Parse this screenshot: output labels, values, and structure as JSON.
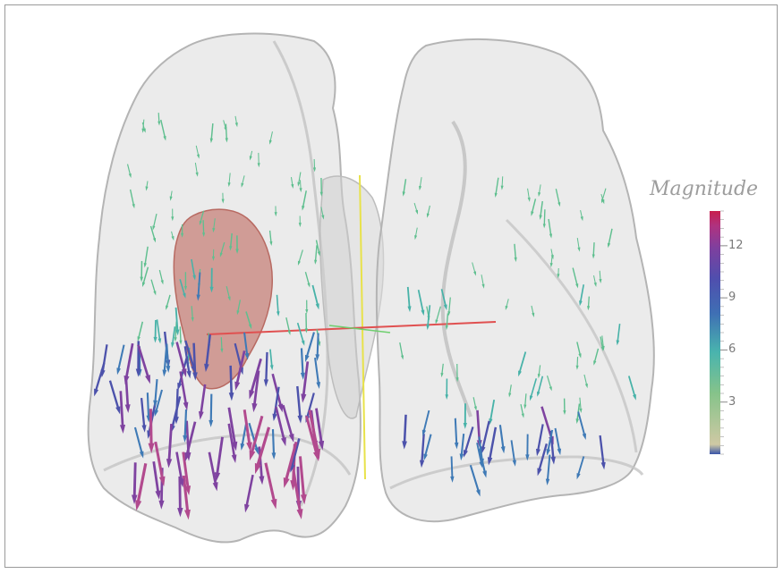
{
  "legend": {
    "title": "Magnitude",
    "min": 0,
    "max": 14,
    "ticks": [
      3,
      6,
      9,
      12
    ],
    "colors": [
      "#3a55a8",
      "#cfc9a4",
      "#86c38a",
      "#49b4ae",
      "#3f6fb4",
      "#4f4fae",
      "#7f3f9e",
      "#b0327f",
      "#c81e4e"
    ]
  },
  "colors": {
    "lung_fill": "#d9d9d9",
    "lung_stroke": "#b2b2b2",
    "tumor": "#c57a72",
    "axis_vertical": "#e8e24a",
    "axis_horizontal": "#e05050",
    "axis_green": "#6fcf6f"
  }
}
